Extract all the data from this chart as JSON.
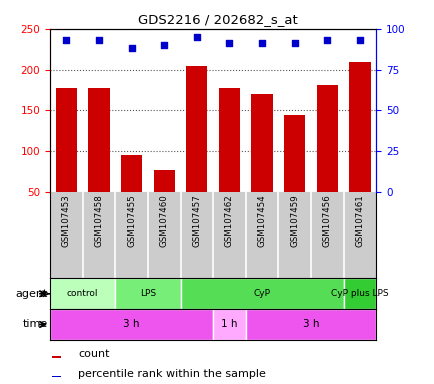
{
  "title": "GDS2216 / 202682_s_at",
  "samples": [
    "GSM107453",
    "GSM107458",
    "GSM107455",
    "GSM107460",
    "GSM107457",
    "GSM107462",
    "GSM107454",
    "GSM107459",
    "GSM107456",
    "GSM107461"
  ],
  "counts": [
    178,
    178,
    95,
    77,
    204,
    178,
    170,
    144,
    181,
    209
  ],
  "percentile_ranks": [
    93,
    93,
    88,
    90,
    95,
    91,
    91,
    91,
    93,
    93
  ],
  "ylim_left": [
    50,
    250
  ],
  "ylim_right": [
    0,
    100
  ],
  "yticks_left": [
    50,
    100,
    150,
    200,
    250
  ],
  "yticks_right": [
    0,
    25,
    50,
    75,
    100
  ],
  "bar_color": "#cc0000",
  "dot_color": "#0000cc",
  "agent_groups": [
    {
      "label": "control",
      "start": 0,
      "end": 2,
      "color": "#bbffbb"
    },
    {
      "label": "LPS",
      "start": 2,
      "end": 4,
      "color": "#77ee77"
    },
    {
      "label": "CyP",
      "start": 4,
      "end": 9,
      "color": "#55dd55"
    },
    {
      "label": "CyP plus LPS",
      "start": 9,
      "end": 10,
      "color": "#33cc33"
    }
  ],
  "time_groups": [
    {
      "label": "3 h",
      "start": 0,
      "end": 5,
      "color": "#ee55ee"
    },
    {
      "label": "1 h",
      "start": 5,
      "end": 6,
      "color": "#ffaaff"
    },
    {
      "label": "3 h",
      "start": 6,
      "end": 10,
      "color": "#ee55ee"
    }
  ],
  "agent_label": "agent",
  "time_label": "time",
  "legend_count_label": "count",
  "legend_pct_label": "percentile rank within the sample",
  "bg_color": "#ffffff",
  "sample_bg_color": "#cccccc",
  "grid_color": "#555555"
}
